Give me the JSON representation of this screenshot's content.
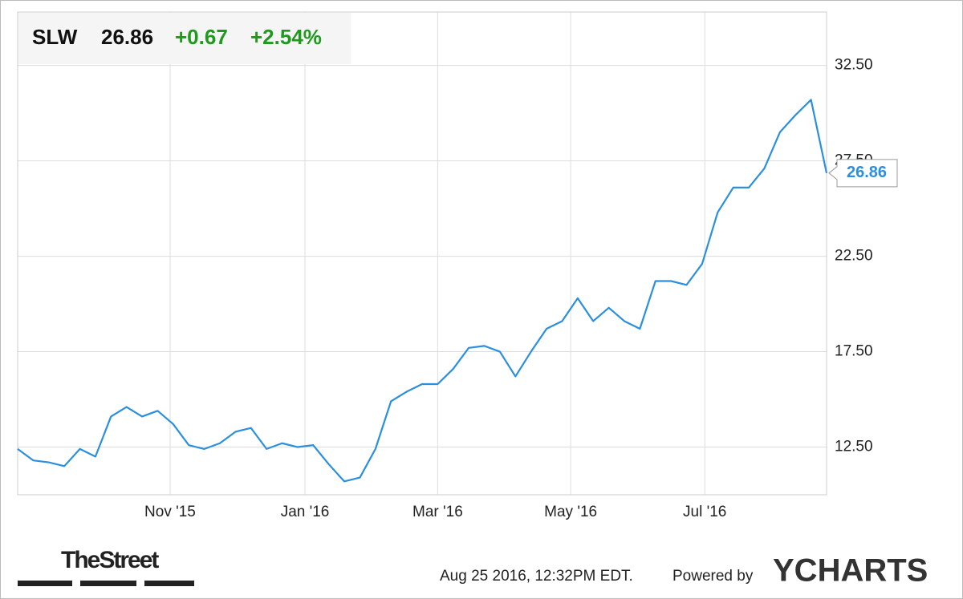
{
  "header": {
    "ticker": "SLW",
    "price": "26.86",
    "change": "+0.67",
    "change_percent": "+2.54%"
  },
  "chart_data": {
    "type": "line",
    "series": [
      {
        "name": "SLW",
        "color": "#2b8fe0",
        "values": [
          12.4,
          11.8,
          11.7,
          11.5,
          12.4,
          12.0,
          14.1,
          14.6,
          14.1,
          14.4,
          13.7,
          12.6,
          12.4,
          12.7,
          13.3,
          13.5,
          12.4,
          12.7,
          12.5,
          12.6,
          11.6,
          10.7,
          10.9,
          12.4,
          14.9,
          15.4,
          15.8,
          15.8,
          16.6,
          17.7,
          17.8,
          17.5,
          16.2,
          17.5,
          18.7,
          19.1,
          20.3,
          19.1,
          19.8,
          19.1,
          18.7,
          21.2,
          21.2,
          21.0,
          22.1,
          24.8,
          26.1,
          26.1,
          27.1,
          29.0,
          29.9,
          30.7,
          26.86
        ]
      }
    ],
    "xlim": [
      0,
      52
    ],
    "xticks": [
      {
        "value": 9.8,
        "label": "Nov '15"
      },
      {
        "value": 18.47,
        "label": "Jan '16"
      },
      {
        "value": 27.0,
        "label": "Mar '16"
      },
      {
        "value": 35.55,
        "label": "May '16"
      },
      {
        "value": 44.17,
        "label": "Jul '16"
      }
    ],
    "ylim": [
      10.0,
      35.3
    ],
    "yticks": [
      {
        "value": 12.5,
        "label": "12.50"
      },
      {
        "value": 17.5,
        "label": "17.50"
      },
      {
        "value": 22.5,
        "label": "22.50"
      },
      {
        "value": 27.5,
        "label": "27.50"
      },
      {
        "value": 32.5,
        "label": "32.50"
      }
    ],
    "grid": true
  },
  "footer": {
    "brand": "TheStreet",
    "timestamp": "Aug 25 2016, 12:32PM EDT.",
    "powered": "Powered by",
    "logo": "YCHARTS"
  }
}
